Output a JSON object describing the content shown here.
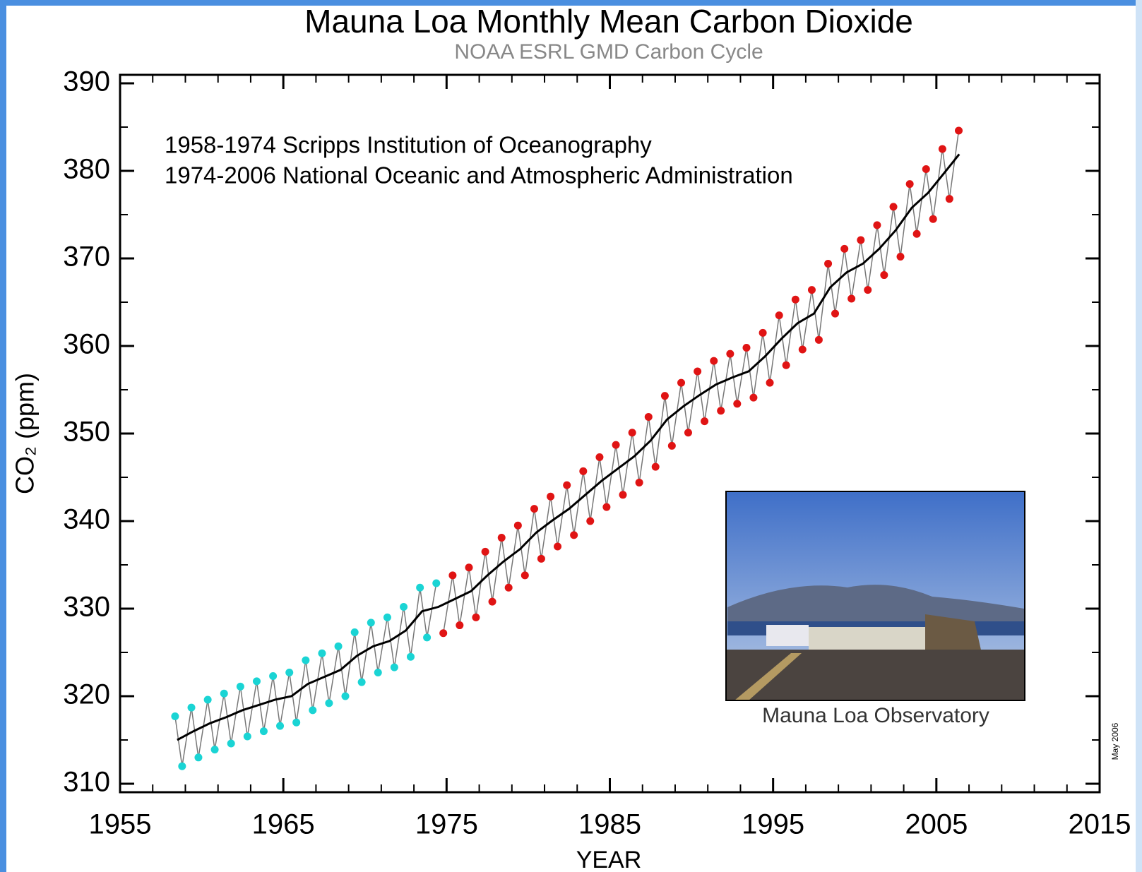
{
  "chart_data": {
    "type": "line",
    "title": "Mauna Loa Monthly Mean Carbon Dioxide",
    "subtitle": "NOAA ESRL GMD Carbon Cycle",
    "annotations": [
      "1958-1974 Scripps Institution of Oceanography",
      "1974-2006 National Oceanic and Atmospheric Administration"
    ],
    "xlabel": "YEAR",
    "ylabel": "CO₂ (ppm)",
    "inset_caption": "Mauna Loa Observatory",
    "side_note": "May 2006",
    "xlim": [
      1955,
      2015
    ],
    "xticks": [
      1955,
      1965,
      1975,
      1985,
      1995,
      2005,
      2015
    ],
    "xminorticks": [
      1957,
      1959,
      1961,
      1963,
      1967,
      1969,
      1971,
      1973,
      1977,
      1979,
      1981,
      1983,
      1987,
      1989,
      1991,
      1993,
      1997,
      1999,
      2001,
      2003,
      2007,
      2009,
      2011,
      2013
    ],
    "ylim": [
      310,
      390
    ],
    "yticks": [
      310,
      320,
      330,
      340,
      350,
      360,
      370,
      380,
      390
    ],
    "yminorticks": [
      315,
      325,
      335,
      345,
      355,
      365,
      375,
      385
    ],
    "series": [
      {
        "color": "#1ad4d4",
        "x": [
          1958.37,
          1958.8,
          1959.37,
          1959.8,
          1960.37,
          1960.8,
          1961.37,
          1961.8,
          1962.37,
          1962.8,
          1963.37,
          1963.8,
          1964.37,
          1964.8,
          1965.37,
          1965.8,
          1966.37,
          1966.8,
          1967.37,
          1967.8,
          1968.37,
          1968.8,
          1969.37,
          1969.8,
          1970.37,
          1970.8,
          1971.37,
          1971.8,
          1972.37,
          1972.8,
          1973.37,
          1973.8,
          1974.37
        ],
        "values": [
          317.7,
          312.0,
          318.7,
          313.0,
          319.6,
          313.9,
          320.3,
          314.6,
          321.1,
          315.4,
          321.7,
          316.0,
          322.3,
          316.6,
          322.7,
          317.0,
          324.1,
          318.4,
          324.9,
          319.2,
          325.7,
          320.0,
          327.3,
          321.6,
          328.4,
          322.7,
          329.0,
          323.3,
          330.2,
          324.5,
          332.4,
          326.7,
          332.9
        ]
      },
      {
        "color": "#e01414",
        "x": [
          1974.8,
          1975.37,
          1975.8,
          1976.37,
          1976.8,
          1977.37,
          1977.8,
          1978.37,
          1978.8,
          1979.37,
          1979.8,
          1980.37,
          1980.8,
          1981.37,
          1981.8,
          1982.37,
          1982.8,
          1983.37,
          1983.8,
          1984.37,
          1984.8,
          1985.37,
          1985.8,
          1986.37,
          1986.8,
          1987.37,
          1987.8,
          1988.37,
          1988.8,
          1989.37,
          1989.8,
          1990.37,
          1990.8,
          1991.37,
          1991.8,
          1992.37,
          1992.8,
          1993.37,
          1993.8,
          1994.37,
          1994.8,
          1995.37,
          1995.8,
          1996.37,
          1996.8,
          1997.37,
          1997.8,
          1998.37,
          1998.8,
          1999.37,
          1999.8,
          2000.37,
          2000.8,
          2001.37,
          2001.8,
          2002.37,
          2002.8,
          2003.37,
          2003.8,
          2004.37,
          2004.8,
          2005.37,
          2005.8,
          2006.37
        ],
        "values": [
          327.2,
          333.8,
          328.1,
          334.7,
          329.0,
          336.5,
          330.8,
          338.1,
          332.4,
          339.5,
          333.8,
          341.4,
          335.7,
          342.8,
          337.1,
          344.1,
          338.4,
          345.7,
          340.0,
          347.3,
          341.6,
          348.7,
          343.0,
          350.1,
          344.4,
          351.9,
          346.2,
          354.3,
          348.6,
          355.8,
          350.1,
          357.1,
          351.4,
          358.3,
          352.6,
          359.1,
          353.4,
          359.8,
          354.1,
          361.5,
          355.8,
          363.5,
          357.8,
          365.3,
          359.6,
          366.4,
          360.7,
          369.4,
          363.7,
          371.1,
          365.4,
          372.1,
          366.4,
          373.8,
          368.1,
          375.9,
          370.2,
          378.5,
          372.8,
          380.2,
          374.5,
          382.5,
          376.8,
          384.6
        ]
      },
      {
        "color": "#000000",
        "x": [
          1958.5,
          1959.5,
          1960.5,
          1961.5,
          1962.5,
          1963.5,
          1964.5,
          1965.5,
          1966.5,
          1967.5,
          1968.5,
          1969.5,
          1970.5,
          1971.5,
          1972.5,
          1973.5,
          1974.5,
          1975.5,
          1976.5,
          1977.5,
          1978.5,
          1979.5,
          1980.5,
          1981.5,
          1982.5,
          1983.5,
          1984.5,
          1985.5,
          1986.5,
          1987.5,
          1988.5,
          1989.5,
          1990.5,
          1991.5,
          1992.5,
          1993.5,
          1994.5,
          1995.5,
          1996.5,
          1997.5,
          1998.5,
          1999.5,
          2000.5,
          2001.5,
          2002.5,
          2003.5,
          2004.5,
          2005.5,
          2006.4
        ],
        "values": [
          315.0,
          316.0,
          316.9,
          317.6,
          318.4,
          319.0,
          319.6,
          320.0,
          321.4,
          322.2,
          323.0,
          324.6,
          325.7,
          326.3,
          327.5,
          329.7,
          330.2,
          331.1,
          332.0,
          333.8,
          335.4,
          336.8,
          338.7,
          340.1,
          341.4,
          343.0,
          344.6,
          346.0,
          347.4,
          349.2,
          351.6,
          353.1,
          354.4,
          355.6,
          356.4,
          357.1,
          358.8,
          360.8,
          362.6,
          363.7,
          366.7,
          368.4,
          369.4,
          371.1,
          373.2,
          375.8,
          377.5,
          379.8,
          381.9
        ]
      }
    ]
  }
}
